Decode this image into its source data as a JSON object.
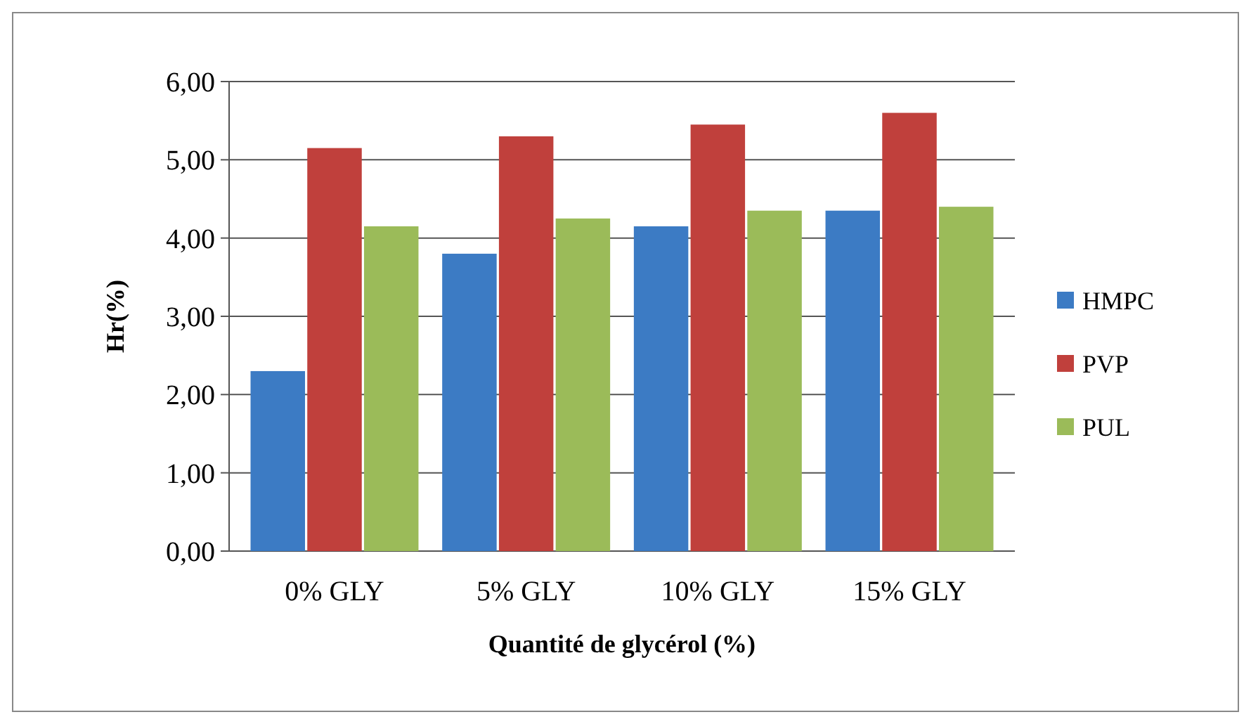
{
  "chart_data": {
    "type": "bar",
    "xlabel": "Quantité de glycérol (%)",
    "ylabel": "Hr(%)",
    "categories": [
      "0% GLY",
      "5% GLY",
      "10% GLY",
      "15% GLY"
    ],
    "series": [
      {
        "name": "HMPC",
        "color": "#3c7bc4",
        "values": [
          2.3,
          3.8,
          4.15,
          4.35
        ]
      },
      {
        "name": "PVP",
        "color": "#c0403c",
        "values": [
          5.15,
          5.3,
          5.45,
          5.6
        ]
      },
      {
        "name": "PUL",
        "color": "#9bbb59",
        "values": [
          4.15,
          4.25,
          4.35,
          4.4
        ]
      }
    ],
    "ylim": [
      0,
      6
    ],
    "yticks": [
      {
        "value": 0,
        "label": "0,00"
      },
      {
        "value": 1,
        "label": "1,00"
      },
      {
        "value": 2,
        "label": "2,00"
      },
      {
        "value": 3,
        "label": "3,00"
      },
      {
        "value": 4,
        "label": "4,00"
      },
      {
        "value": 5,
        "label": "5,00"
      },
      {
        "value": 6,
        "label": "6,00"
      }
    ],
    "grid": "y",
    "legend": "right"
  }
}
